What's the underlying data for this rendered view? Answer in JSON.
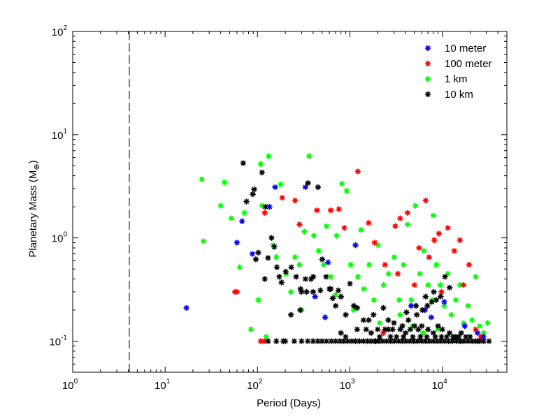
{
  "chart_data": {
    "type": "scatter",
    "xlabel": "Period (Days)",
    "ylabel_base": "Planetary Mass (M",
    "ylabel_sub": "⊕",
    "ylabel_close": ")",
    "x_scale": "log",
    "y_scale": "log",
    "xlim": [
      1,
      50000
    ],
    "ylim": [
      0.05,
      100
    ],
    "x_ticks": [
      {
        "base": "10",
        "exp": "0",
        "value": 1
      },
      {
        "base": "10",
        "exp": "1",
        "value": 10
      },
      {
        "base": "10",
        "exp": "2",
        "value": 100
      },
      {
        "base": "10",
        "exp": "3",
        "value": 1000
      },
      {
        "base": "10",
        "exp": "4",
        "value": 10000
      }
    ],
    "y_ticks": [
      {
        "base": "10",
        "exp": "-1",
        "value": 0.1
      },
      {
        "base": "10",
        "exp": "0",
        "value": 1
      },
      {
        "base": "10",
        "exp": "1",
        "value": 10
      },
      {
        "base": "10",
        "exp": "2",
        "value": 100
      }
    ],
    "vertical_line_x": 4.1,
    "grid": false,
    "legend_position": "top-right",
    "marker": "asterisk",
    "series": [
      {
        "name": "10 meter",
        "color": "#0000ff",
        "points": [
          [
            17,
            0.21
          ],
          [
            60,
            0.9
          ],
          [
            68,
            1.45
          ],
          [
            88,
            0.7
          ],
          [
            135,
            2.0
          ],
          [
            155,
            3.1
          ],
          [
            330,
            3.1
          ],
          [
            420,
            0.27
          ],
          [
            540,
            0.17
          ],
          [
            580,
            0.58
          ],
          [
            1150,
            0.85
          ],
          [
            4600,
            0.22
          ],
          [
            6500,
            0.2
          ],
          [
            7600,
            0.17
          ],
          [
            10500,
            0.24
          ],
          [
            17500,
            0.14
          ],
          [
            24000,
            0.12
          ],
          [
            28000,
            0.11
          ]
        ]
      },
      {
        "name": "100 meter",
        "color": "#ff0000",
        "points": [
          [
            57,
            0.3
          ],
          [
            60,
            0.3
          ],
          [
            108,
            0.1
          ],
          [
            118,
            0.1
          ],
          [
            120,
            1.75
          ],
          [
            185,
            2.45
          ],
          [
            255,
            2.3
          ],
          [
            285,
            1.35
          ],
          [
            440,
            1.85
          ],
          [
            620,
            1.85
          ],
          [
            760,
            1.9
          ],
          [
            870,
            1.25
          ],
          [
            1220,
            4.4
          ],
          [
            1600,
            1.4
          ],
          [
            1850,
            0.9
          ],
          [
            2400,
            0.55
          ],
          [
            3100,
            1.3
          ],
          [
            3500,
            1.55
          ],
          [
            4200,
            1.75
          ],
          [
            5600,
            0.8
          ],
          [
            6600,
            2.3
          ],
          [
            7200,
            0.65
          ],
          [
            8200,
            0.95
          ],
          [
            9200,
            1.1
          ],
          [
            11500,
            1.25
          ],
          [
            13500,
            0.75
          ],
          [
            15500,
            0.95
          ],
          [
            17000,
            0.35
          ],
          [
            19500,
            0.55
          ],
          [
            23000,
            0.13
          ],
          [
            26000,
            0.11
          ],
          [
            2300,
            0.12
          ],
          [
            3300,
            0.45
          ],
          [
            5000,
            0.35
          ],
          [
            9800,
            0.3
          ]
        ]
      },
      {
        "name": "1 km",
        "color": "#00ff00",
        "points": [
          [
            25,
            3.7
          ],
          [
            26,
            0.93
          ],
          [
            40,
            2.05
          ],
          [
            44,
            3.45
          ],
          [
            52,
            1.55
          ],
          [
            64,
            0.52
          ],
          [
            72,
            1.75
          ],
          [
            85,
            0.13
          ],
          [
            102,
            0.25
          ],
          [
            108,
            5.2
          ],
          [
            112,
            2.05
          ],
          [
            124,
            0.11
          ],
          [
            132,
            6.2
          ],
          [
            148,
            0.85
          ],
          [
            178,
            3.3
          ],
          [
            205,
            0.45
          ],
          [
            255,
            0.65
          ],
          [
            285,
            0.55
          ],
          [
            322,
            1.15
          ],
          [
            362,
            6.2
          ],
          [
            408,
            1.05
          ],
          [
            458,
            0.75
          ],
          [
            520,
            0.55
          ],
          [
            620,
            0.42
          ],
          [
            720,
            1.05
          ],
          [
            820,
            3.35
          ],
          [
            920,
            2.85
          ],
          [
            1020,
            0.55
          ],
          [
            1220,
            0.42
          ],
          [
            1420,
            0.32
          ],
          [
            1620,
            0.55
          ],
          [
            1820,
            0.25
          ],
          [
            2020,
            0.85
          ],
          [
            2320,
            0.35
          ],
          [
            2620,
            0.45
          ],
          [
            3020,
            0.65
          ],
          [
            3420,
            0.25
          ],
          [
            3820,
            0.55
          ],
          [
            4220,
            1.35
          ],
          [
            4620,
            0.25
          ],
          [
            5120,
            2.05
          ],
          [
            5720,
            0.45
          ],
          [
            6320,
            0.75
          ],
          [
            7020,
            0.35
          ],
          [
            7820,
            0.25
          ],
          [
            8620,
            0.55
          ],
          [
            9520,
            0.35
          ],
          [
            10520,
            0.22
          ],
          [
            11520,
            0.45
          ],
          [
            12520,
            0.18
          ],
          [
            14020,
            0.25
          ],
          [
            15520,
            0.35
          ],
          [
            17020,
            0.15
          ],
          [
            19020,
            0.22
          ],
          [
            21020,
            0.16
          ],
          [
            23020,
            0.42
          ],
          [
            25520,
            0.14
          ],
          [
            28020,
            0.12
          ],
          [
            31020,
            0.15
          ],
          [
            8020,
            1.65
          ],
          [
            1320,
            1.2
          ],
          [
            560,
            1.3
          ],
          [
            160,
            0.65
          ],
          [
            230,
            0.3
          ],
          [
            300,
            0.2
          ],
          [
            700,
            0.28
          ],
          [
            1100,
            0.2
          ],
          [
            2100,
            0.15
          ],
          [
            3500,
            0.18
          ],
          [
            4800,
            0.14
          ],
          [
            6200,
            0.12
          ],
          [
            9000,
            0.13
          ],
          [
            13000,
            0.11
          ],
          [
            16000,
            0.1
          ]
        ]
      },
      {
        "name": "10 km",
        "color": "#000000",
        "points": [
          [
            70,
            5.3
          ],
          [
            76,
            2.25
          ],
          [
            89,
            2.65
          ],
          [
            92,
            2.95
          ],
          [
            96,
            0.62
          ],
          [
            102,
            0.72
          ],
          [
            112,
            4.3
          ],
          [
            122,
            2.0
          ],
          [
            142,
            1.0
          ],
          [
            152,
            0.82
          ],
          [
            162,
            0.52
          ],
          [
            172,
            0.42
          ],
          [
            182,
            0.37
          ],
          [
            202,
            0.47
          ],
          [
            232,
            0.52
          ],
          [
            262,
            0.42
          ],
          [
            292,
            0.32
          ],
          [
            352,
            3.4
          ],
          [
            402,
            0.42
          ],
          [
            452,
            3.1
          ],
          [
            502,
            0.62
          ],
          [
            552,
            0.42
          ],
          [
            602,
            0.32
          ],
          [
            652,
            0.26
          ],
          [
            702,
            0.22
          ],
          [
            802,
            0.27
          ],
          [
            902,
            0.18
          ],
          [
            1002,
            0.36
          ],
          [
            1102,
            0.22
          ],
          [
            1202,
            0.21
          ],
          [
            1402,
            0.16
          ],
          [
            1602,
            0.16
          ],
          [
            1802,
            0.18
          ],
          [
            2002,
            0.13
          ],
          [
            2302,
            0.21
          ],
          [
            2602,
            0.16
          ],
          [
            3002,
            0.15
          ],
          [
            3502,
            0.13
          ],
          [
            4002,
            0.12
          ],
          [
            4502,
            0.13
          ],
          [
            5002,
            0.14
          ],
          [
            5502,
            0.13
          ],
          [
            6002,
            0.14
          ],
          [
            7002,
            0.13
          ],
          [
            8002,
            0.12
          ],
          [
            9002,
            0.14
          ],
          [
            10002,
            0.13
          ],
          [
            12002,
            0.12
          ],
          [
            14002,
            0.11
          ],
          [
            16002,
            0.12
          ],
          [
            18002,
            0.11
          ],
          [
            20002,
            0.11
          ],
          [
            24002,
            0.1
          ],
          [
            28002,
            0.1
          ],
          [
            32002,
            0.1
          ],
          [
            130,
            0.1
          ],
          [
            160,
            0.1
          ],
          [
            200,
            0.1
          ],
          [
            250,
            0.1
          ],
          [
            300,
            0.1
          ],
          [
            350,
            0.1
          ],
          [
            400,
            0.1
          ],
          [
            450,
            0.1
          ],
          [
            500,
            0.1
          ],
          [
            560,
            0.1
          ],
          [
            630,
            0.1
          ],
          [
            700,
            0.1
          ],
          [
            780,
            0.1
          ],
          [
            860,
            0.1
          ],
          [
            950,
            0.1
          ],
          [
            1050,
            0.1
          ],
          [
            1150,
            0.1
          ],
          [
            1270,
            0.1
          ],
          [
            1400,
            0.1
          ],
          [
            1550,
            0.1
          ],
          [
            1700,
            0.1
          ],
          [
            1870,
            0.1
          ],
          [
            2060,
            0.1
          ],
          [
            2270,
            0.1
          ],
          [
            2500,
            0.1
          ],
          [
            2750,
            0.1
          ],
          [
            3030,
            0.1
          ],
          [
            3340,
            0.1
          ],
          [
            3680,
            0.1
          ],
          [
            4050,
            0.1
          ],
          [
            4460,
            0.1
          ],
          [
            4910,
            0.1
          ],
          [
            5410,
            0.1
          ],
          [
            5960,
            0.1
          ],
          [
            6560,
            0.1
          ],
          [
            7230,
            0.1
          ],
          [
            7960,
            0.1
          ],
          [
            8770,
            0.1
          ],
          [
            9660,
            0.1
          ],
          [
            10640,
            0.1
          ],
          [
            11720,
            0.1
          ],
          [
            12900,
            0.1
          ],
          [
            14200,
            0.1
          ],
          [
            15600,
            0.1
          ],
          [
            17200,
            0.1
          ],
          [
            19000,
            0.1
          ],
          [
            21000,
            0.1
          ],
          [
            23000,
            0.1
          ],
          [
            25500,
            0.1
          ],
          [
            3200,
            0.11
          ],
          [
            3800,
            0.11
          ],
          [
            4800,
            0.11
          ],
          [
            5800,
            0.11
          ],
          [
            6800,
            0.11
          ],
          [
            8400,
            0.11
          ],
          [
            9800,
            0.11
          ],
          [
            11200,
            0.11
          ],
          [
            13100,
            0.11
          ],
          [
            15100,
            0.11
          ],
          [
            2900,
            0.13
          ],
          [
            3700,
            0.14
          ],
          [
            4300,
            0.16
          ],
          [
            5300,
            0.18
          ],
          [
            6100,
            0.2
          ],
          [
            6900,
            0.22
          ],
          [
            7700,
            0.24
          ],
          [
            8600,
            0.25
          ],
          [
            9600,
            0.27
          ],
          [
            2400,
            0.13
          ],
          [
            2100,
            0.11
          ],
          [
            1900,
            0.1
          ],
          [
            12000,
            0.33
          ],
          [
            10700,
            0.42
          ],
          [
            8100,
            0.3
          ],
          [
            6600,
            0.27
          ],
          [
            5200,
            0.22
          ],
          [
            4100,
            0.19
          ],
          [
            1200,
            0.13
          ],
          [
            900,
            0.11
          ],
          [
            300,
            0.3
          ],
          [
            340,
            0.3
          ],
          [
            400,
            0.3
          ],
          [
            480,
            0.31
          ],
          [
            620,
            0.32
          ],
          [
            750,
            0.31
          ],
          [
            380,
            0.4
          ],
          [
            330,
            0.4
          ],
          [
            290,
            0.2
          ],
          [
            230,
            0.18
          ],
          [
            120,
            0.4
          ],
          [
            190,
            0.1
          ],
          [
            130,
            0.64
          ],
          [
            800,
            0.12
          ],
          [
            1500,
            0.13
          ],
          [
            1700,
            0.12
          ],
          [
            2600,
            0.13
          ],
          [
            2750,
            0.11
          ]
        ]
      }
    ]
  }
}
